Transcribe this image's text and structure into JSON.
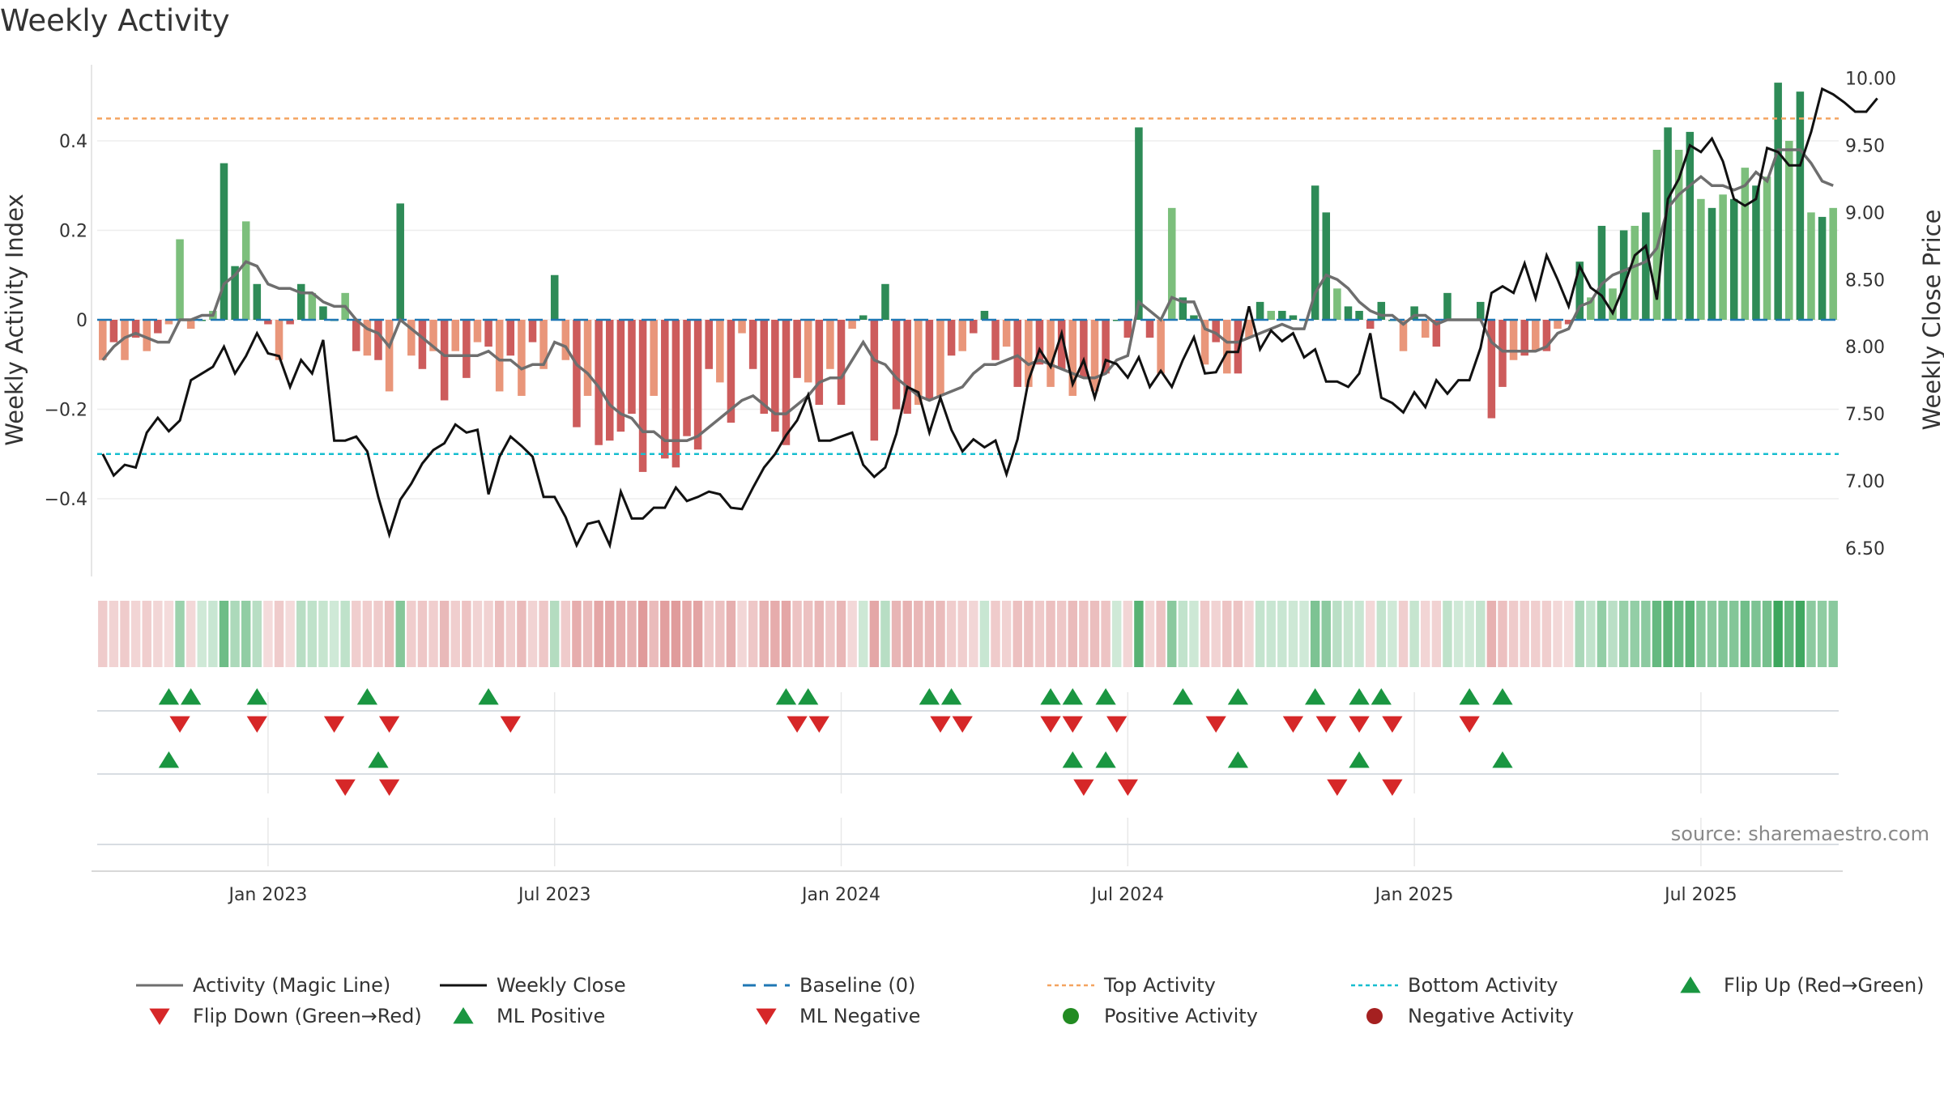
{
  "title": "Weekly Activity",
  "source": "source: sharemaestro.com",
  "colors": {
    "pos_strong": "#2e8b57",
    "pos_light": "#7cbf7c",
    "neg_strong": "#cd5c5c",
    "neg_light": "#e9967a",
    "magic": "#6e6e6e",
    "close": "#111111",
    "baseline": "#1f77b4",
    "top": "#f4a460",
    "bottom": "#17becf",
    "flip_up": "#1a9641",
    "flip_down": "#d62728"
  },
  "chart_data": {
    "type": "bar+line",
    "title": "Weekly Activity",
    "ylabel_left": "Weekly Activity Index",
    "ylabel_right": "Weekly Close Price",
    "ylim_left": [
      -0.57,
      0.57
    ],
    "ylim_right": [
      6.3,
      10.1
    ],
    "yticks_left": [
      {
        "v": 0.4,
        "t": "0.4"
      },
      {
        "v": 0.2,
        "t": "0.2"
      },
      {
        "v": 0,
        "t": "0"
      },
      {
        "v": -0.2,
        "t": "−0.2"
      },
      {
        "v": -0.4,
        "t": "−0.4"
      }
    ],
    "yticks_right": [
      {
        "v": 10,
        "t": "10.00"
      },
      {
        "v": 9.5,
        "t": "9.50"
      },
      {
        "v": 9,
        "t": "9.00"
      },
      {
        "v": 8.5,
        "t": "8.50"
      },
      {
        "v": 8,
        "t": "8.00"
      },
      {
        "v": 7.5,
        "t": "7.50"
      },
      {
        "v": 7,
        "t": "7.00"
      },
      {
        "v": 6.5,
        "t": "6.50"
      }
    ],
    "start_week_index": 0,
    "weeks_total": 158,
    "x_ticks": [
      {
        "week": 15,
        "label": "Jan 2023"
      },
      {
        "week": 41,
        "label": "Jul 2023"
      },
      {
        "week": 67,
        "label": "Jan 2024"
      },
      {
        "week": 93,
        "label": "Jul 2024"
      },
      {
        "week": 119,
        "label": "Jan 2025"
      },
      {
        "week": 145,
        "label": "Jul 2025"
      }
    ],
    "top_activity": 0.45,
    "bottom_activity": -0.3,
    "baseline": 0,
    "activity": [
      -0.09,
      -0.05,
      -0.09,
      -0.04,
      -0.07,
      -0.03,
      -0.01,
      0.18,
      -0.02,
      0.0,
      0.02,
      0.35,
      0.12,
      0.22,
      0.08,
      -0.01,
      -0.09,
      -0.01,
      0.08,
      0.06,
      0.03,
      0.0,
      0.06,
      -0.07,
      -0.08,
      -0.09,
      -0.16,
      0.26,
      -0.08,
      -0.11,
      -0.07,
      -0.18,
      -0.07,
      -0.13,
      -0.05,
      -0.06,
      -0.16,
      -0.08,
      -0.17,
      -0.05,
      -0.11,
      0.1,
      -0.09,
      -0.24,
      -0.17,
      -0.28,
      -0.27,
      -0.25,
      -0.21,
      -0.34,
      -0.17,
      -0.31,
      -0.33,
      -0.26,
      -0.29,
      -0.11,
      -0.14,
      -0.23,
      -0.03,
      -0.11,
      -0.21,
      -0.25,
      -0.28,
      -0.13,
      -0.14,
      -0.19,
      -0.11,
      -0.19,
      -0.02,
      0.01,
      -0.27,
      0.08,
      -0.2,
      -0.21,
      -0.19,
      -0.18,
      -0.17,
      -0.08,
      -0.07,
      -0.03,
      0.02,
      -0.09,
      -0.06,
      -0.15,
      -0.15,
      -0.1,
      -0.15,
      -0.11,
      -0.17,
      -0.13,
      -0.16,
      -0.12,
      0.0,
      -0.04,
      0.43,
      -0.04,
      -0.12,
      0.25,
      0.05,
      0.01,
      -0.1,
      -0.05,
      -0.12,
      -0.12,
      -0.04,
      0.04,
      0.02,
      0.02,
      0.01,
      0.0,
      0.3,
      0.24,
      0.07,
      0.03,
      0.02,
      -0.02,
      0.04,
      0.0,
      -0.07,
      0.03,
      -0.04,
      -0.06,
      0.06,
      0.0,
      0.0,
      0.04,
      -0.22,
      -0.15,
      -0.09,
      -0.08,
      -0.07,
      -0.07,
      -0.02,
      -0.01,
      0.13,
      0.05,
      0.21,
      0.07,
      0.2,
      0.21,
      0.24,
      0.38,
      0.43,
      0.38,
      0.42,
      0.27,
      0.25,
      0.28,
      0.27,
      0.34,
      0.3,
      0.32,
      0.53,
      0.4,
      0.51,
      0.24,
      0.23,
      0.25
    ],
    "magic_line": [
      -0.09,
      -0.06,
      -0.04,
      -0.03,
      -0.04,
      -0.05,
      -0.05,
      0.0,
      0.0,
      0.01,
      0.01,
      0.08,
      0.1,
      0.13,
      0.12,
      0.08,
      0.07,
      0.07,
      0.06,
      0.06,
      0.04,
      0.03,
      0.03,
      0.0,
      -0.02,
      -0.03,
      -0.06,
      0.0,
      -0.02,
      -0.04,
      -0.06,
      -0.08,
      -0.08,
      -0.08,
      -0.08,
      -0.07,
      -0.09,
      -0.09,
      -0.11,
      -0.1,
      -0.1,
      -0.05,
      -0.06,
      -0.1,
      -0.12,
      -0.15,
      -0.19,
      -0.21,
      -0.22,
      -0.25,
      -0.25,
      -0.27,
      -0.27,
      -0.27,
      -0.26,
      -0.24,
      -0.22,
      -0.2,
      -0.18,
      -0.17,
      -0.19,
      -0.21,
      -0.21,
      -0.19,
      -0.17,
      -0.14,
      -0.13,
      -0.13,
      -0.09,
      -0.05,
      -0.09,
      -0.1,
      -0.13,
      -0.15,
      -0.17,
      -0.18,
      -0.17,
      -0.16,
      -0.15,
      -0.12,
      -0.1,
      -0.1,
      -0.09,
      -0.08,
      -0.1,
      -0.09,
      -0.1,
      -0.11,
      -0.12,
      -0.13,
      -0.13,
      -0.12,
      -0.09,
      -0.08,
      0.04,
      0.02,
      0.0,
      0.05,
      0.04,
      0.04,
      -0.02,
      -0.03,
      -0.05,
      -0.05,
      -0.04,
      -0.03,
      -0.02,
      -0.01,
      -0.02,
      -0.02,
      0.06,
      0.1,
      0.09,
      0.07,
      0.04,
      0.02,
      0.01,
      0.01,
      -0.01,
      0.01,
      0.01,
      -0.01,
      0.0,
      0.0,
      0.0,
      0.0,
      -0.05,
      -0.07,
      -0.07,
      -0.07,
      -0.07,
      -0.06,
      -0.03,
      -0.02,
      0.03,
      0.04,
      0.08,
      0.1,
      0.11,
      0.12,
      0.13,
      0.16,
      0.25,
      0.28,
      0.3,
      0.32,
      0.3,
      0.3,
      0.29,
      0.3,
      0.33,
      0.31,
      0.38,
      0.38,
      0.38,
      0.35,
      0.31,
      0.3
    ],
    "weekly_close": [
      7.2,
      7.04,
      7.12,
      7.1,
      7.36,
      7.47,
      7.37,
      7.45,
      7.75,
      7.8,
      7.85,
      8.0,
      7.8,
      7.93,
      8.1,
      7.95,
      7.93,
      7.7,
      7.9,
      7.8,
      8.05,
      7.3,
      7.3,
      7.33,
      7.22,
      6.88,
      6.6,
      6.86,
      6.98,
      7.13,
      7.23,
      7.28,
      7.42,
      7.36,
      7.38,
      6.9,
      7.18,
      7.33,
      7.26,
      7.18,
      6.88,
      6.88,
      6.73,
      6.52,
      6.68,
      6.7,
      6.52,
      6.92,
      6.72,
      6.72,
      6.8,
      6.8,
      6.95,
      6.85,
      6.88,
      6.92,
      6.9,
      6.8,
      6.79,
      6.95,
      7.1,
      7.2,
      7.34,
      7.45,
      7.64,
      7.3,
      7.3,
      7.33,
      7.36,
      7.12,
      7.03,
      7.1,
      7.35,
      7.7,
      7.66,
      7.36,
      7.62,
      7.38,
      7.22,
      7.31,
      7.25,
      7.3,
      7.05,
      7.31,
      7.75,
      7.98,
      7.85,
      8.1,
      7.72,
      7.9,
      7.62,
      7.9,
      7.87,
      7.77,
      7.92,
      7.7,
      7.82,
      7.7,
      7.9,
      8.07,
      7.8,
      7.81,
      7.96,
      7.96,
      8.3,
      7.98,
      8.12,
      8.04,
      8.1,
      7.92,
      7.98,
      7.74,
      7.74,
      7.7,
      7.8,
      8.1,
      7.62,
      7.58,
      7.51,
      7.66,
      7.55,
      7.75,
      7.65,
      7.75,
      7.75,
      7.99,
      8.4,
      8.45,
      8.4,
      8.62,
      8.36,
      8.68,
      8.5,
      8.3,
      8.6,
      8.44,
      8.38,
      8.25,
      8.45,
      8.68,
      8.75,
      8.35,
      9.1,
      9.25,
      9.5,
      9.45,
      9.55,
      9.38,
      9.1,
      9.05,
      9.1,
      9.48,
      9.45,
      9.35,
      9.35,
      9.6,
      9.92,
      9.88,
      9.82,
      9.75,
      9.75,
      9.85
    ],
    "flip_up": [
      6,
      8,
      14,
      24,
      35,
      62,
      64,
      75,
      77,
      86,
      88,
      91,
      98,
      103,
      110,
      114,
      116,
      124,
      127
    ],
    "flip_down": [
      7,
      14,
      21,
      26,
      37,
      63,
      65,
      76,
      78,
      86,
      88,
      92,
      101,
      108,
      111,
      114,
      117,
      124
    ],
    "ml_positive": [
      6,
      25,
      88,
      91,
      103,
      114,
      127
    ],
    "ml_negative": [
      22,
      26,
      89,
      93,
      112,
      117
    ],
    "legend": [
      "Activity (Magic Line)",
      "Weekly Close",
      "Baseline (0)",
      "Top Activity",
      "Bottom Activity",
      "Flip Up (Red→Green)",
      "Flip Down (Green→Red)",
      "ML Positive",
      "ML Negative",
      "Positive Activity",
      "Negative Activity"
    ]
  }
}
